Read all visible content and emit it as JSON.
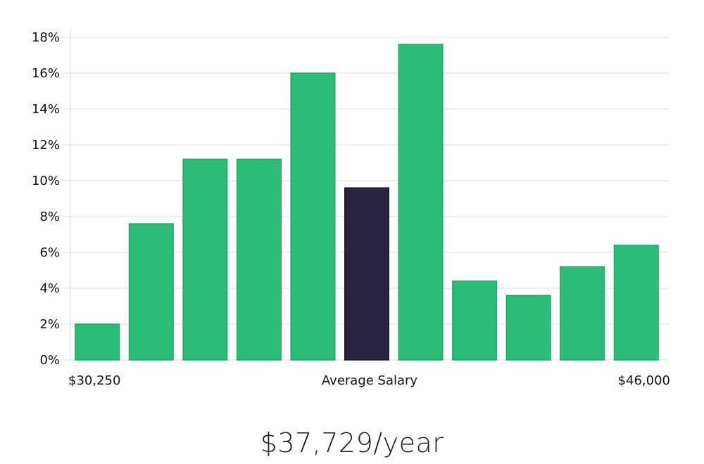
{
  "colors": {
    "bar": "#2bbd77",
    "highlight": "#28233f",
    "grid": "#dcdcdc",
    "text": "#111111"
  },
  "chart_data": {
    "type": "bar",
    "bins": 11,
    "values": [
      2.0,
      7.6,
      11.2,
      11.2,
      16.0,
      9.6,
      17.6,
      4.4,
      3.6,
      5.2,
      6.4
    ],
    "highlight_index": 5,
    "y_unit": "%",
    "ylim": [
      0,
      18
    ],
    "yticks": [
      0,
      2,
      4,
      6,
      8,
      10,
      12,
      14,
      16,
      18
    ],
    "ytick_labels": [
      "0%",
      "2%",
      "4%",
      "6%",
      "8%",
      "10%",
      "12%",
      "14%",
      "16%",
      "18%"
    ],
    "x_labels": {
      "left": "$30,250",
      "center": "Average Salary",
      "right": "$46,000"
    },
    "grid": true
  },
  "summary": {
    "salary_text": "$37,729/year"
  }
}
